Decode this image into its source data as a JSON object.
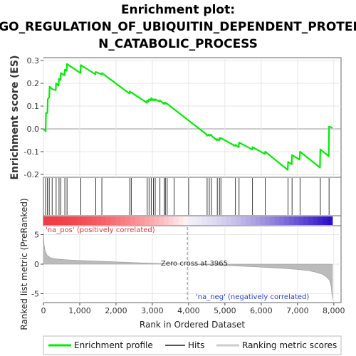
{
  "title_lines": [
    "Enrichment plot:",
    "GO_REGULATION_OF_UBIQUITIN_DEPENDENT_PROTEI",
    "N_CATABOLIC_PROCESS"
  ],
  "legend": {
    "items": [
      "Enrichment profile",
      "Hits",
      "Ranking metric scores"
    ],
    "colors": [
      "#00ee00",
      "#555555",
      "#cccccc"
    ]
  },
  "annotations": {
    "pos": "'na_pos' (positively correlated)",
    "neg": "'na_neg' (negatively correlated)",
    "zero_cross": "Zero cross at 3965"
  },
  "chart_data": [
    {
      "type": "line",
      "name": "enrichment-score",
      "ylabel": "Enrichment score (ES)",
      "xlim": [
        0,
        8200
      ],
      "ylim": [
        -0.2,
        0.3
      ],
      "yticks": [
        -0.2,
        -0.1,
        0.0,
        0.1,
        0.2,
        0.3
      ],
      "ytick_labels": [
        "-0.2",
        "-0.1",
        "0.0",
        "0.1",
        "0.2",
        "0.3"
      ],
      "grid": true,
      "color": "#00ee00",
      "x": [
        0,
        60,
        70,
        110,
        120,
        160,
        170,
        240,
        340,
        350,
        420,
        430,
        470,
        480,
        580,
        590,
        640,
        650,
        1020,
        1030,
        1430,
        1440,
        1600,
        1610,
        2370,
        2380,
        2410,
        2420,
        2850,
        2860,
        2900,
        2910,
        2960,
        2970,
        3020,
        3030,
        3070,
        3080,
        3200,
        3210,
        3320,
        3330,
        3350,
        3360,
        3400,
        3410,
        4500,
        4510,
        4560,
        4570,
        4620,
        4630,
        4780,
        4790,
        4840,
        4850,
        4880,
        4890,
        5280,
        5290,
        5380,
        5390,
        5750,
        5760,
        6100,
        6110,
        6730,
        6740,
        6840,
        6850,
        7060,
        7070,
        7620,
        7630,
        7860,
        7870,
        7960
      ],
      "y": [
        0.0,
        -0.01,
        0.07,
        0.07,
        0.13,
        0.14,
        0.185,
        0.175,
        0.17,
        0.2,
        0.19,
        0.22,
        0.215,
        0.245,
        0.235,
        0.26,
        0.255,
        0.285,
        0.245,
        0.28,
        0.24,
        0.25,
        0.24,
        0.245,
        0.155,
        0.165,
        0.16,
        0.16,
        0.115,
        0.125,
        0.12,
        0.13,
        0.125,
        0.135,
        0.125,
        0.13,
        0.125,
        0.13,
        0.12,
        0.125,
        0.11,
        0.115,
        0.11,
        0.115,
        0.11,
        0.11,
        -0.025,
        -0.03,
        -0.025,
        -0.03,
        -0.025,
        -0.03,
        -0.05,
        -0.045,
        -0.05,
        -0.04,
        -0.045,
        -0.04,
        -0.075,
        -0.07,
        -0.08,
        -0.06,
        -0.09,
        -0.08,
        -0.11,
        -0.1,
        -0.18,
        -0.145,
        -0.155,
        -0.115,
        -0.135,
        -0.1,
        -0.17,
        -0.09,
        -0.12,
        0.01,
        0.005
      ]
    },
    {
      "type": "hits",
      "name": "gene-hits",
      "hits": [
        60,
        110,
        160,
        240,
        350,
        430,
        480,
        590,
        650,
        1030,
        1440,
        1610,
        2380,
        2420,
        2860,
        2910,
        2970,
        3030,
        3080,
        3210,
        3330,
        3360,
        3410,
        3600,
        4000,
        4510,
        4570,
        4630,
        4790,
        4850,
        4890,
        5290,
        5390,
        5760,
        6110,
        6740,
        6850,
        7070,
        7630,
        7870
      ]
    },
    {
      "type": "area",
      "name": "ranked-list-metric",
      "xlabel": "Rank in Ordered Dataset",
      "ylabel": "Ranked list metric (PreRanked)",
      "xlim": [
        0,
        8200
      ],
      "ylim": [
        -6.5,
        6.5
      ],
      "yticks": [
        -5,
        0,
        5
      ],
      "ytick_labels": [
        "-5",
        "0",
        "5"
      ],
      "xticks": [
        0,
        1000,
        2000,
        3000,
        4000,
        5000,
        6000,
        7000,
        8000
      ],
      "xtick_labels": [
        "0",
        "1,000",
        "2,000",
        "3,000",
        "4,000",
        "5,000",
        "6,000",
        "7,000",
        "8,000"
      ],
      "grid": true,
      "zero_cross": 3965,
      "color": "#bbbbbb",
      "x": [
        0,
        20,
        50,
        100,
        200,
        400,
        700,
        1000,
        1500,
        2000,
        2500,
        3000,
        3500,
        3965,
        4500,
        5000,
        5500,
        6000,
        6500,
        7000,
        7300,
        7500,
        7700,
        7800,
        7880,
        7930,
        7960
      ],
      "y": [
        5.2,
        3.2,
        2.2,
        1.5,
        1.05,
        0.85,
        0.72,
        0.62,
        0.5,
        0.38,
        0.27,
        0.16,
        0.06,
        0.0,
        -0.1,
        -0.22,
        -0.35,
        -0.5,
        -0.68,
        -0.9,
        -1.1,
        -1.35,
        -1.75,
        -2.15,
        -2.7,
        -3.8,
        -6.0
      ]
    }
  ]
}
